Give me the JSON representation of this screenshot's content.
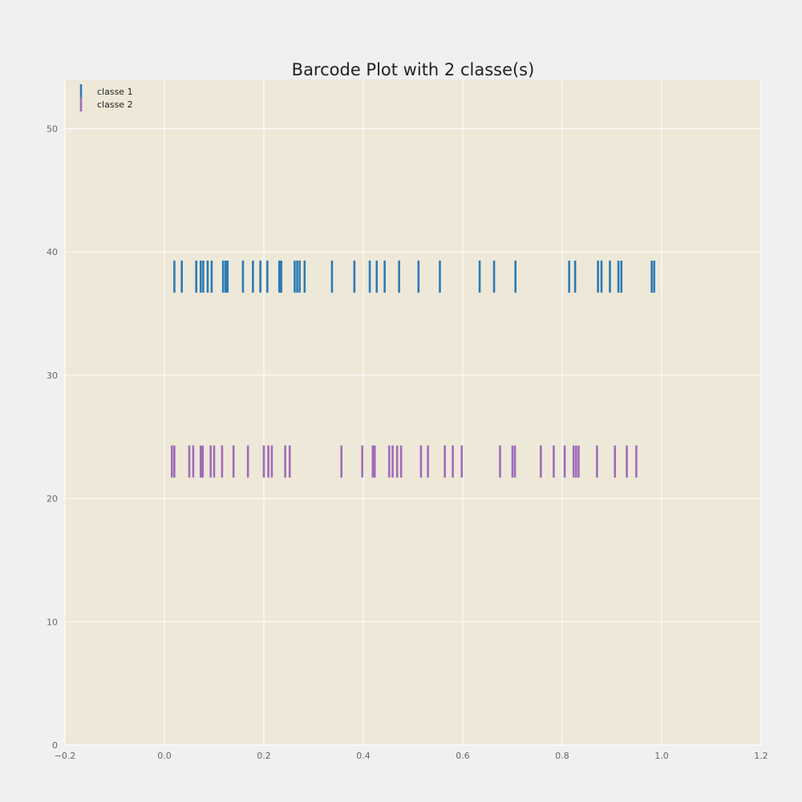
{
  "chart_data": {
    "type": "scatter",
    "title": "Barcode Plot with 2 classe(s)",
    "xlabel": "",
    "ylabel": "",
    "xlim": [
      -0.2,
      1.2
    ],
    "ylim": [
      0,
      54
    ],
    "grid": true,
    "legend_position": "top-left",
    "x_ticks": [
      "−0.2",
      "0.0",
      "0.2",
      "0.4",
      "0.6",
      "0.8",
      "1.0",
      "1.2"
    ],
    "y_ticks": [
      "0",
      "10",
      "20",
      "30",
      "40",
      "50"
    ],
    "background_color": "#eee8d8",
    "grid_color": "#ffffff",
    "series": [
      {
        "name": "classe 1",
        "color": "#2c7bb6",
        "y": 38,
        "bar_height": 2.6,
        "x": [
          0.02,
          0.035,
          0.064,
          0.073,
          0.078,
          0.087,
          0.095,
          0.118,
          0.123,
          0.127,
          0.158,
          0.178,
          0.193,
          0.207,
          0.231,
          0.235,
          0.262,
          0.267,
          0.272,
          0.282,
          0.337,
          0.382,
          0.413,
          0.427,
          0.443,
          0.472,
          0.511,
          0.554,
          0.634,
          0.663,
          0.706,
          0.814,
          0.826,
          0.872,
          0.879,
          0.896,
          0.913,
          0.919,
          0.98,
          0.985
        ]
      },
      {
        "name": "classe 2",
        "color": "#9e6cb9",
        "y": 23,
        "bar_height": 2.6,
        "x": [
          0.015,
          0.02,
          0.05,
          0.058,
          0.073,
          0.077,
          0.093,
          0.1,
          0.116,
          0.139,
          0.168,
          0.2,
          0.209,
          0.216,
          0.243,
          0.252,
          0.356,
          0.398,
          0.419,
          0.423,
          0.452,
          0.459,
          0.468,
          0.476,
          0.516,
          0.53,
          0.564,
          0.58,
          0.598,
          0.675,
          0.7,
          0.705,
          0.757,
          0.783,
          0.805,
          0.823,
          0.828,
          0.833,
          0.87,
          0.906,
          0.93,
          0.949
        ]
      }
    ]
  }
}
